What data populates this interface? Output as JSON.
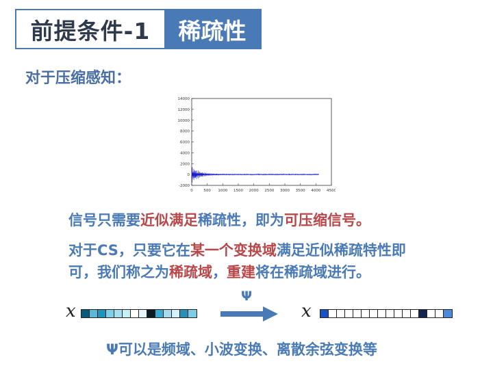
{
  "title": {
    "left": "前提条件-1",
    "right": "稀疏性"
  },
  "subtitle": "对于压缩感知：",
  "chart_data": {
    "type": "line",
    "y_ticks": [
      "14000",
      "12000",
      "10000",
      "8000",
      "6000",
      "4000",
      "2000",
      "0",
      "-2000"
    ],
    "x_ticks": [
      "0",
      "500",
      "1000",
      "1500",
      "2000",
      "2500",
      "3000",
      "3500",
      "4000",
      "4500"
    ],
    "xlim": [
      0,
      4500
    ],
    "ylim": [
      -2000,
      14000
    ],
    "series_color": "#1a1acc",
    "series": [
      {
        "x_range": [
          0,
          4096
        ],
        "amplitude_max": 1500,
        "description": "decaying oscillation"
      }
    ]
  },
  "para1": {
    "s1": "信号只需要",
    "s2": "近似满足",
    "s3": "稀疏性，即为",
    "s4": "可压缩信号。"
  },
  "para2": {
    "l1a": "对于CS，只要它在",
    "l1b": "某一个变换域",
    "l1c": "满足近似稀疏特性即",
    "l2a": "可，我们称之为",
    "l2b": "稀疏域",
    "l2c": "，",
    "l2d": "重建",
    "l2e": "将在稀疏域进行。"
  },
  "vec_label_left": "x",
  "vec_label_right": "x",
  "arrow_label": "Ψ",
  "vec_left_colors": [
    "#0a5a7a",
    "#5ab8d8",
    "#1f93bc",
    "#7fd0e8",
    "#a6e0f0",
    "#c8eef6",
    "#ffffff",
    "#e8f6fb",
    "#0d1a24",
    "#3ca8cf",
    "#a8dced",
    "#d4f0f8",
    "#2a8fb6",
    "#7ccde6"
  ],
  "vec_right_colors": [
    "#1b4fc4",
    "#ffffff",
    "#ffffff",
    "#ffffff",
    "#ffffff",
    "#ffffff",
    "#ffffff",
    "#ffffff",
    "#ffffff",
    "#ffffff",
    "#ffffff",
    "#ffffff",
    "#12244f",
    "#ffffff",
    "#ffffff",
    "#4f8ad8"
  ],
  "bottom": "Ψ可以是频域、小波变换、离散余弦变换等"
}
